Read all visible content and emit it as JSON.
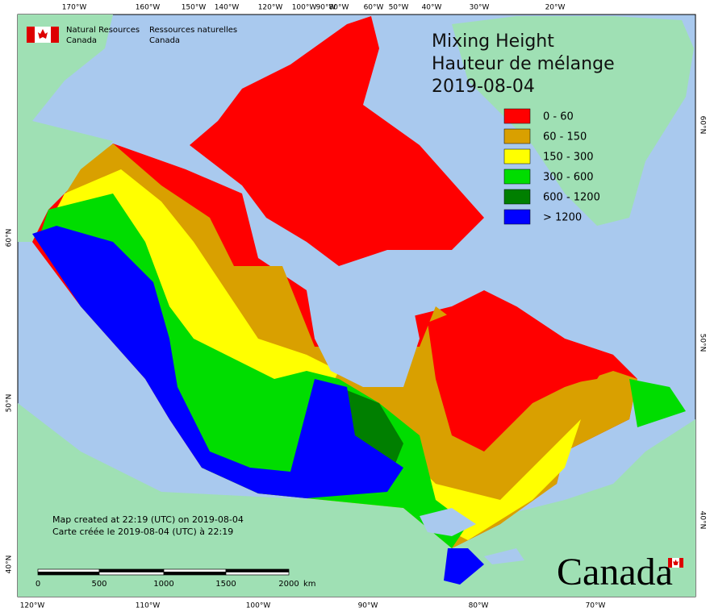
{
  "header": {
    "agency_en": [
      "Natural Resources",
      "Canada"
    ],
    "agency_fr": [
      "Ressources naturelles",
      "Canada"
    ]
  },
  "title": [
    "Mixing Height",
    "Hauteur de mélange",
    "2019-08-04"
  ],
  "legend": [
    {
      "label": "0 - 60",
      "color": "#ff0000"
    },
    {
      "label": "60 - 150",
      "color": "#d9a000"
    },
    {
      "label": "150 - 300",
      "color": "#ffff00"
    },
    {
      "label": "300 - 600",
      "color": "#00dd00"
    },
    {
      "label": "600 - 1200",
      "color": "#007f00"
    },
    {
      "label": "> 1200",
      "color": "#0000ff"
    }
  ],
  "graticule": {
    "top": [
      "170°W",
      "160°W",
      "150°W",
      "140°W",
      "120°W",
      "100°W",
      "90°W",
      "80°W",
      "60°W",
      "50°W",
      "40°W",
      "30°W",
      "20°W"
    ],
    "bottom": [
      "120°W",
      "110°W",
      "100°W",
      "90°W",
      "80°W",
      "70°W"
    ],
    "left": [
      "60°N",
      "50°N",
      "40°N"
    ],
    "right": [
      "60°N",
      "50°N",
      "40°N"
    ]
  },
  "credits": [
    "Map created at 22:19 (UTC) on 2019-08-04",
    "Carte créée le 2019-08-04 (UTC) à 22:19"
  ],
  "scale": {
    "labels": [
      0,
      500,
      1000,
      1500,
      2000
    ],
    "unit": "km"
  },
  "wordmark": "Canada"
}
